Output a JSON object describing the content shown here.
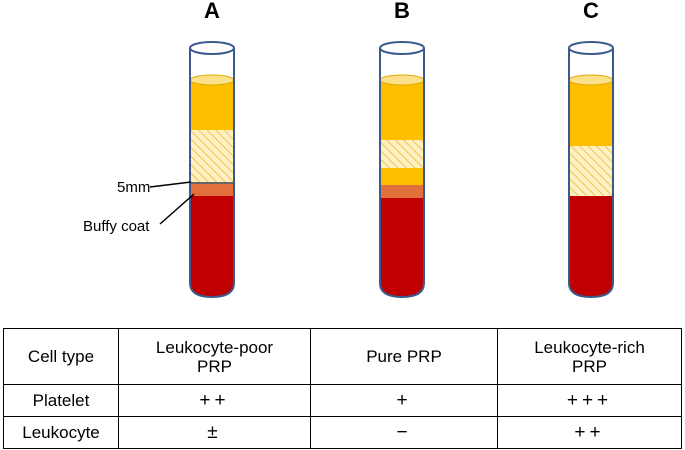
{
  "tubes": [
    {
      "label": "A"
    },
    {
      "label": "B"
    },
    {
      "label": "C"
    }
  ],
  "annotations": {
    "thickness": "5mm",
    "layer": "Buffy coat"
  },
  "table": {
    "header": [
      [
        "Cell type"
      ],
      [
        "Leukocyte-poor",
        "PRP"
      ],
      [
        "Pure PRP"
      ],
      [
        "Leukocyte-rich",
        "PRP"
      ]
    ],
    "rows": [
      [
        "Platelet",
        "++",
        "+",
        "+++"
      ],
      [
        "Leukocyte",
        "±",
        "−",
        "++"
      ]
    ]
  }
}
